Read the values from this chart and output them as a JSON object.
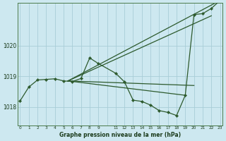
{
  "background_color": "#cde8f0",
  "grid_color": "#a8cdd8",
  "line_color": "#2d5a2d",
  "title": "Graphe pression niveau de la mer (hPa)",
  "ylim": [
    1017.4,
    1021.4
  ],
  "yticks": [
    1018,
    1019,
    1020
  ],
  "xlim": [
    -0.3,
    23.3
  ],
  "hours_main": [
    0,
    1,
    2,
    3,
    4,
    5,
    6,
    7,
    8,
    9,
    11,
    12,
    13,
    14,
    15,
    16,
    17,
    18,
    19,
    20,
    21,
    22,
    23
  ],
  "vals_main": [
    1018.2,
    1018.65,
    1018.88,
    1018.9,
    1018.92,
    1018.85,
    1018.83,
    1018.93,
    1019.6,
    1019.42,
    1019.1,
    1018.82,
    1018.22,
    1018.18,
    1018.06,
    1017.88,
    1017.82,
    1017.72,
    1018.38,
    1021.02,
    1021.05,
    1021.22,
    1021.48
  ],
  "fan_lines": [
    {
      "x": [
        5.5,
        23
      ],
      "y": [
        1018.85,
        1021.48
      ]
    },
    {
      "x": [
        5.5,
        22
      ],
      "y": [
        1018.85,
        1020.98
      ]
    },
    {
      "x": [
        5.5,
        19
      ],
      "y": [
        1018.85,
        1018.38
      ]
    },
    {
      "x": [
        5.5,
        20
      ],
      "y": [
        1018.85,
        1018.7
      ]
    }
  ],
  "xticks": [
    0,
    1,
    2,
    3,
    4,
    5,
    6,
    7,
    8,
    9,
    11,
    12,
    13,
    14,
    15,
    16,
    17,
    18,
    19,
    20,
    21,
    22,
    23
  ],
  "xtick_labels": [
    "0",
    "1",
    "2",
    "3",
    "4",
    "5",
    "6",
    "7",
    "8",
    "9",
    "11",
    "12",
    "13",
    "14",
    "15",
    "16",
    "17",
    "18",
    "19",
    "20",
    "21",
    "22",
    "23"
  ]
}
